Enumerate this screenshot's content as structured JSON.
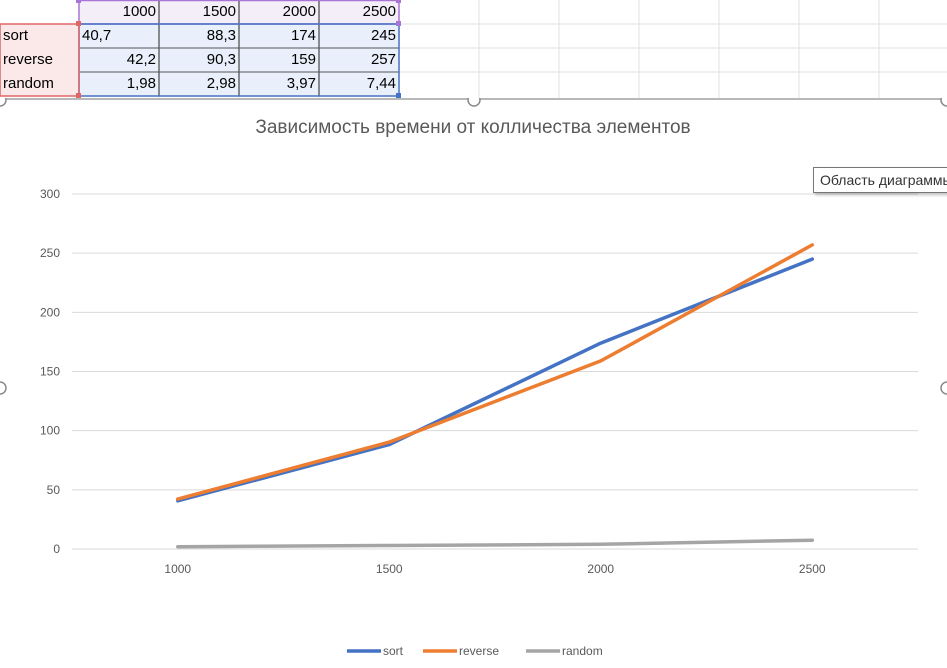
{
  "sheet": {
    "header": [
      "1000",
      "1500",
      "2000",
      "2500"
    ],
    "rows": [
      {
        "label": "sort",
        "values": [
          "40,7",
          "88,3",
          "174",
          "245"
        ]
      },
      {
        "label": "reverse",
        "values": [
          "42,2",
          "90,3",
          "159",
          "257"
        ]
      },
      {
        "label": "random",
        "values": [
          "1,98",
          "2,98",
          "3,97",
          "7,44"
        ]
      }
    ]
  },
  "tooltip": "Область диаграммы",
  "colors": {
    "sort": "#4472c4",
    "reverse": "#ed7d31",
    "random": "#a5a5a5",
    "grid": "#d9d9d9",
    "axis_text": "#595959"
  },
  "chart_data": {
    "type": "line",
    "title": "Зависимость времени от колличества элементов",
    "categories": [
      "1000",
      "1500",
      "2000",
      "2500"
    ],
    "series": [
      {
        "name": "sort",
        "values": [
          40.7,
          88.3,
          174,
          245
        ]
      },
      {
        "name": "reverse",
        "values": [
          42.2,
          90.3,
          159,
          257
        ]
      },
      {
        "name": "random",
        "values": [
          1.98,
          2.98,
          3.97,
          7.44
        ]
      }
    ],
    "yticks": [
      "0",
      "50",
      "100",
      "150",
      "200",
      "250",
      "300"
    ],
    "ylim": [
      0,
      300
    ],
    "grid": true,
    "legend": "bottom"
  }
}
